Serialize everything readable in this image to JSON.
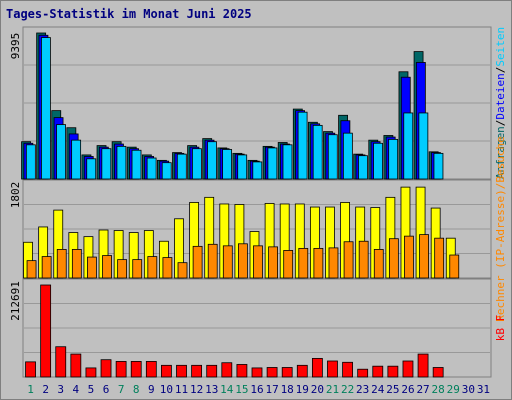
{
  "title": "Tages-Statistik im Monat Juni 2025",
  "colors": {
    "background": "#c0c0c0",
    "title": "#000080",
    "anfragen": "#006666",
    "dateien": "#0000ff",
    "seiten": "#00ccff",
    "rechner": "#ffff00",
    "besuche": "#ff8800",
    "kbytes": "#ff0000",
    "weekend_day": "#00805c",
    "weekday": "#000080"
  },
  "chart_data": [
    {
      "type": "bar",
      "panel": "top",
      "max_label": "9395",
      "ylim": [
        0,
        9395
      ],
      "categories": [
        "1",
        "2",
        "3",
        "4",
        "5",
        "6",
        "7",
        "8",
        "9",
        "10",
        "11",
        "12",
        "13",
        "14",
        "15",
        "16",
        "17",
        "18",
        "19",
        "20",
        "21",
        "22",
        "23",
        "24",
        "25",
        "26",
        "27",
        "28",
        "29",
        "30",
        "31"
      ],
      "legend": {
        "parts": [
          "Anfragen",
          "/",
          "Dateien",
          "/",
          "Seiten"
        ],
        "colors": [
          "#006666",
          "#000000",
          "#0000ff",
          "#000000",
          "#00ccff"
        ]
      },
      "series": [
        {
          "name": "Anfragen",
          "color": "#006666",
          "values": [
            2400,
            9395,
            4400,
            3300,
            1550,
            2150,
            2400,
            2050,
            1550,
            1200,
            1700,
            2150,
            2600,
            2000,
            1650,
            1200,
            2100,
            2350,
            4500,
            3650,
            3050,
            4100,
            1600,
            2500,
            2800,
            6900,
            8200,
            1750,
            0,
            0,
            0
          ]
        },
        {
          "name": "Dateien",
          "color": "#0000ff",
          "values": [
            2300,
            9250,
            3950,
            2900,
            1450,
            2050,
            2250,
            1950,
            1450,
            1150,
            1650,
            2050,
            2500,
            1950,
            1600,
            1150,
            2050,
            2250,
            4400,
            3550,
            2950,
            3750,
            1550,
            2400,
            2700,
            6550,
            7500,
            1700,
            0,
            0,
            0
          ]
        },
        {
          "name": "Seiten",
          "color": "#00ccff",
          "values": [
            2200,
            9100,
            3500,
            2500,
            1300,
            1950,
            2100,
            1850,
            1350,
            1050,
            1600,
            1950,
            2400,
            1900,
            1550,
            1100,
            2000,
            2200,
            4300,
            3450,
            2850,
            2950,
            1500,
            2300,
            2550,
            4250,
            4250,
            1650,
            0,
            0,
            0
          ]
        }
      ]
    },
    {
      "type": "bar",
      "panel": "middle",
      "max_label": "1802",
      "ylim": [
        0,
        1802
      ],
      "categories": [
        "1",
        "2",
        "3",
        "4",
        "5",
        "6",
        "7",
        "8",
        "9",
        "10",
        "11",
        "12",
        "13",
        "14",
        "15",
        "16",
        "17",
        "18",
        "19",
        "20",
        "21",
        "22",
        "23",
        "24",
        "25",
        "26",
        "27",
        "28",
        "29",
        "30",
        "31"
      ],
      "legend": {
        "parts": [
          "Rechner (IP-Adresse)",
          "/",
          "Besuche"
        ],
        "colors": [
          "#ff8800",
          "#ff8800",
          "#ff8800"
        ]
      },
      "series": [
        {
          "name": "Rechner (IP-Adresse)",
          "color": "#ffff00",
          "values": [
            700,
            1000,
            1330,
            890,
            810,
            940,
            930,
            890,
            930,
            720,
            1160,
            1480,
            1580,
            1450,
            1440,
            910,
            1460,
            1450,
            1450,
            1390,
            1390,
            1480,
            1390,
            1380,
            1580,
            1780,
            1780,
            1370,
            780,
            0,
            0
          ]
        },
        {
          "name": "Besuche",
          "color": "#ff8800",
          "values": [
            340,
            420,
            560,
            560,
            410,
            440,
            360,
            360,
            420,
            400,
            300,
            620,
            660,
            630,
            670,
            630,
            610,
            540,
            580,
            580,
            590,
            710,
            720,
            560,
            770,
            820,
            850,
            780,
            450,
            0,
            0
          ]
        }
      ]
    },
    {
      "type": "bar",
      "panel": "bottom",
      "max_label": "212691",
      "ylim": [
        0,
        212691
      ],
      "categories": [
        "1",
        "2",
        "3",
        "4",
        "5",
        "6",
        "7",
        "8",
        "9",
        "10",
        "11",
        "12",
        "13",
        "14",
        "15",
        "16",
        "17",
        "18",
        "19",
        "20",
        "21",
        "22",
        "23",
        "24",
        "25",
        "26",
        "27",
        "28",
        "29",
        "30",
        "31"
      ],
      "legend": {
        "parts": [
          "kB F"
        ],
        "colors": [
          "#ff0000"
        ]
      },
      "series": [
        {
          "name": "kB F",
          "color": "#ff0000",
          "values": [
            35000,
            212691,
            70000,
            53000,
            21000,
            40000,
            36000,
            36000,
            36000,
            27000,
            27000,
            27000,
            27000,
            33000,
            29000,
            21000,
            22000,
            22000,
            27000,
            43000,
            37000,
            34000,
            18000,
            25000,
            25000,
            37000,
            53000,
            22000,
            0,
            0,
            0
          ]
        }
      ]
    }
  ],
  "x_axis": {
    "weekend_days": [
      1,
      7,
      8,
      14,
      15,
      21,
      22,
      28,
      29
    ]
  }
}
